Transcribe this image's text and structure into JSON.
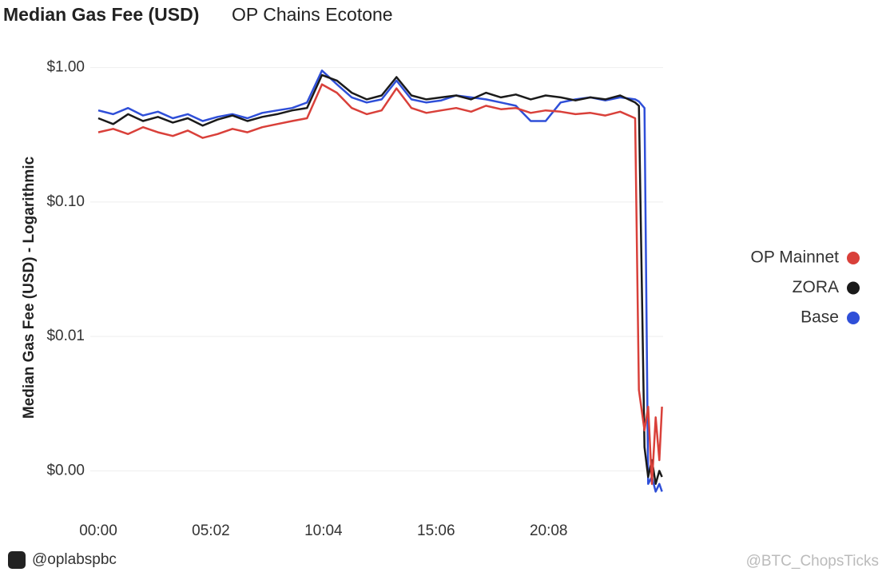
{
  "chart_data": {
    "type": "line",
    "title": "Median Gas Fee (USD)",
    "subtitle": "OP Chains Ecotone",
    "ylabel": "Median Gas Fee (USD) - Logarithmic",
    "log_scale": true,
    "grid": true,
    "legend": "right",
    "x": [
      0,
      40,
      80,
      120,
      160,
      200,
      240,
      280,
      320,
      360,
      400,
      440,
      480,
      520,
      560,
      600,
      640,
      680,
      720,
      760,
      800,
      840,
      880,
      920,
      960,
      1000,
      1040,
      1080,
      1120,
      1160,
      1200,
      1240,
      1280,
      1320,
      1360,
      1400,
      1440,
      1450,
      1465,
      1475,
      1485,
      1495,
      1505,
      1512
    ],
    "xlim": [
      0,
      1515
    ],
    "xticks": [
      {
        "value": 0,
        "label": "00:00"
      },
      {
        "value": 302,
        "label": "05:02"
      },
      {
        "value": 604,
        "label": "10:04"
      },
      {
        "value": 906,
        "label": "15:06"
      },
      {
        "value": 1208,
        "label": "20:08"
      }
    ],
    "ylim": [
      0.0005,
      1.4
    ],
    "yticks": [
      {
        "value": 1,
        "label": "$1.00"
      },
      {
        "value": 0.1,
        "label": "$0.10"
      },
      {
        "value": 0.01,
        "label": "$0.01"
      },
      {
        "value": 0.001,
        "label": "$0.00"
      }
    ],
    "series": [
      {
        "name": "OP Mainnet",
        "color": "#d9403a",
        "values": [
          0.33,
          0.35,
          0.32,
          0.36,
          0.33,
          0.31,
          0.34,
          0.3,
          0.32,
          0.35,
          0.33,
          0.36,
          0.38,
          0.4,
          0.42,
          0.75,
          0.65,
          0.5,
          0.45,
          0.48,
          0.7,
          0.5,
          0.46,
          0.48,
          0.5,
          0.47,
          0.52,
          0.49,
          0.5,
          0.46,
          0.48,
          0.47,
          0.45,
          0.46,
          0.44,
          0.47,
          0.42,
          0.004,
          0.002,
          0.003,
          0.0008,
          0.0025,
          0.0012,
          0.003
        ]
      },
      {
        "name": "ZORA",
        "color": "#1a1a1a",
        "values": [
          0.42,
          0.38,
          0.45,
          0.4,
          0.43,
          0.39,
          0.42,
          0.37,
          0.41,
          0.44,
          0.4,
          0.43,
          0.45,
          0.48,
          0.5,
          0.88,
          0.8,
          0.65,
          0.58,
          0.62,
          0.85,
          0.62,
          0.58,
          0.6,
          0.62,
          0.58,
          0.65,
          0.6,
          0.63,
          0.58,
          0.62,
          0.6,
          0.57,
          0.6,
          0.58,
          0.62,
          0.55,
          0.52,
          0.0015,
          0.0009,
          0.0012,
          0.0008,
          0.001,
          0.0009
        ]
      },
      {
        "name": "Base",
        "color": "#2f4fd8",
        "values": [
          0.48,
          0.45,
          0.5,
          0.44,
          0.47,
          0.42,
          0.45,
          0.4,
          0.43,
          0.45,
          0.42,
          0.46,
          0.48,
          0.5,
          0.55,
          0.95,
          0.75,
          0.6,
          0.55,
          0.58,
          0.8,
          0.58,
          0.55,
          0.57,
          0.62,
          0.6,
          0.58,
          0.55,
          0.52,
          0.4,
          0.4,
          0.55,
          0.58,
          0.6,
          0.57,
          0.6,
          0.58,
          0.56,
          0.5,
          0.0008,
          0.0009,
          0.0007,
          0.0008,
          0.0007
        ]
      }
    ]
  },
  "footer": {
    "source": "@oplabspbc",
    "watermark": "@BTC_ChopsTicks"
  }
}
